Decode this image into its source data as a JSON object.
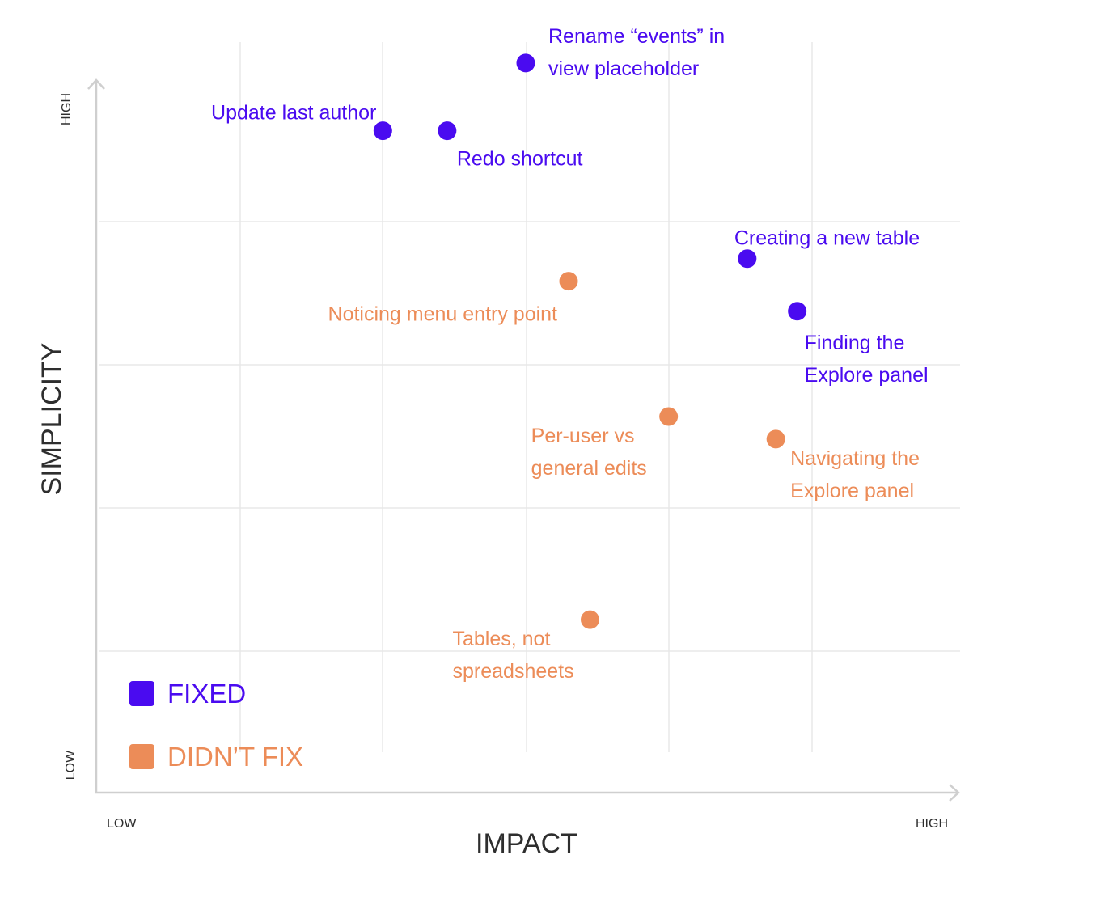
{
  "chart_data": {
    "type": "scatter",
    "xlabel": "IMPACT",
    "ylabel": "SIMPLICITY",
    "x_ticks": {
      "low": "LOW",
      "high": "HIGH"
    },
    "y_ticks": {
      "low": "LOW",
      "high": "HIGH"
    },
    "xlim": [
      0,
      12
    ],
    "ylim": [
      0,
      10
    ],
    "grid": true,
    "legend_position": "bottom-left",
    "series": [
      {
        "name": "FIXED",
        "color": "#4a0bf0",
        "points": [
          {
            "x": 6.0,
            "y": 9.7,
            "label": [
              "Rename “events” in",
              "view placeholder"
            ]
          },
          {
            "x": 4.0,
            "y": 8.8,
            "label": [
              "Update last author"
            ]
          },
          {
            "x": 4.9,
            "y": 8.8,
            "label": [
              "Redo shortcut"
            ]
          },
          {
            "x": 9.1,
            "y": 7.1,
            "label": [
              "Creating a new table"
            ]
          },
          {
            "x": 9.8,
            "y": 6.4,
            "label": [
              "Finding the",
              "Explore panel"
            ]
          }
        ]
      },
      {
        "name": "DIDN’T FIX",
        "color": "#ec8c58",
        "points": [
          {
            "x": 6.6,
            "y": 6.8,
            "label": [
              "Noticing menu entry point"
            ]
          },
          {
            "x": 8.0,
            "y": 5.0,
            "label": [
              "Per-user vs",
              "general edits"
            ]
          },
          {
            "x": 9.5,
            "y": 4.7,
            "label": [
              "Navigating the",
              "Explore panel"
            ]
          },
          {
            "x": 6.9,
            "y": 2.3,
            "label": [
              "Tables, not",
              "spreadsheets"
            ]
          }
        ]
      }
    ]
  }
}
